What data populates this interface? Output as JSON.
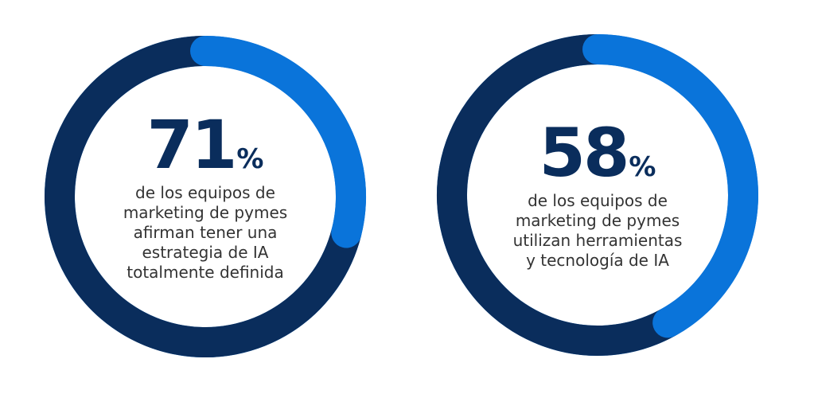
{
  "colors": {
    "filled": "#0a2d5c",
    "remaining": "#0a74da"
  },
  "chart_data": [
    {
      "type": "pie",
      "style": "donut",
      "value": 71,
      "unit": "%",
      "number_text": "71",
      "percent_text": "%",
      "description_lines": [
        "de los equipos de",
        "marketing de pymes",
        "afirman tener una",
        "estrategia de IA",
        "totalmente definida"
      ]
    },
    {
      "type": "pie",
      "style": "donut",
      "value": 58,
      "unit": "%",
      "number_text": "58",
      "percent_text": "%",
      "description_lines": [
        "de los equipos de",
        "marketing de pymes",
        "utilizan herramientas",
        "y tecnología de IA"
      ]
    }
  ]
}
